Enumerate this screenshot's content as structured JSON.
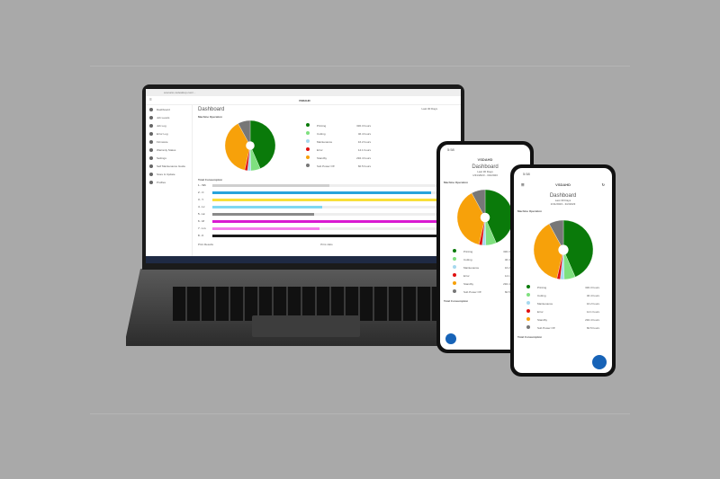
{
  "browser": {
    "url": "scenario.vsdesktop.com/..."
  },
  "app": {
    "brand": "VSDAHD",
    "title": "Dashboard",
    "date_filter": "Last 30 Days",
    "date_range": "1/31/2023 - 3/2/2023",
    "section_machine": "Machine Operation",
    "section_consumption": "Total Consumption",
    "section_print": "Print Results",
    "print_filter": "Print Jobs",
    "print_total": "Total: 32,767"
  },
  "status": {
    "time": "5:58"
  },
  "sidebar": [
    "Dashboard",
    "Job Levels",
    "Job Log",
    "Error Log",
    "Firmware",
    "Warranty Status",
    "Settings",
    "Self Maintenance Guide",
    "Store & Update",
    "Profiles"
  ],
  "machine_operation": [
    {
      "label": "Printing",
      "value": "330.3 hours",
      "hours": 330.3,
      "color": "#0a7a0a"
    },
    {
      "label": "Cutting",
      "value": "46.4 hours",
      "hours": 46.4,
      "color": "#7fe07f"
    },
    {
      "label": "Maintenance",
      "value": "16.2 hours",
      "hours": 16.2,
      "color": "#a6d8ee"
    },
    {
      "label": "Error",
      "value": "14.1 hours",
      "hours": 14.1,
      "color": "#e01010"
    },
    {
      "label": "Standby",
      "value": "292.4 hours",
      "hours": 292.4,
      "color": "#f7a10a"
    },
    {
      "label": "Sub Power Off",
      "value": "60.5 hours",
      "hours": 60.5,
      "color": "#777777"
    }
  ],
  "consumption": [
    {
      "label": "1 - Wh",
      "pct": 48,
      "color": "#cfcfcf"
    },
    {
      "label": "2 - C",
      "pct": 90,
      "color": "#27a3db"
    },
    {
      "label": "3 - Y",
      "pct": 95,
      "color": "#f8df3a"
    },
    {
      "label": "4 - Lc",
      "pct": 45,
      "color": "#7fd8f2"
    },
    {
      "label": "5 - Lk",
      "pct": 42,
      "color": "#8a8a8a"
    },
    {
      "label": "6 - M",
      "pct": 97,
      "color": "#d91ad1"
    },
    {
      "label": "7 - Lm",
      "pct": 44,
      "color": "#f47cec"
    },
    {
      "label": "8 - K",
      "pct": 96,
      "color": "#1a1a1a"
    }
  ]
}
